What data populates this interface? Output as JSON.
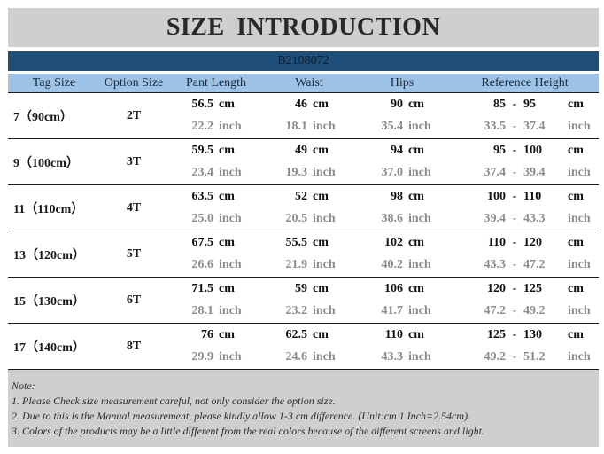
{
  "title": "SIZE  INTRODUCTION",
  "product_code": "B2108072",
  "columns": [
    "Tag Size",
    "Option Size",
    "Pant Length",
    "Waist",
    "Hips",
    "Reference Height"
  ],
  "units": {
    "cm": "cm",
    "inch": "inch",
    "dash": "-"
  },
  "rows": [
    {
      "tag": "7（90cm）",
      "option": "2T",
      "pant_cm": "56.5",
      "pant_in": "22.2",
      "waist_cm": "46",
      "waist_in": "18.1",
      "hips_cm": "90",
      "hips_in": "35.4",
      "ref_cm_min": "85",
      "ref_cm_max": "95",
      "ref_in_min": "33.5",
      "ref_in_max": "37.4"
    },
    {
      "tag": "9（100cm）",
      "option": "3T",
      "pant_cm": "59.5",
      "pant_in": "23.4",
      "waist_cm": "49",
      "waist_in": "19.3",
      "hips_cm": "94",
      "hips_in": "37.0",
      "ref_cm_min": "95",
      "ref_cm_max": "100",
      "ref_in_min": "37.4",
      "ref_in_max": "39.4"
    },
    {
      "tag": "11（110cm）",
      "option": "4T",
      "pant_cm": "63.5",
      "pant_in": "25.0",
      "waist_cm": "52",
      "waist_in": "20.5",
      "hips_cm": "98",
      "hips_in": "38.6",
      "ref_cm_min": "100",
      "ref_cm_max": "110",
      "ref_in_min": "39.4",
      "ref_in_max": "43.3"
    },
    {
      "tag": "13（120cm）",
      "option": "5T",
      "pant_cm": "67.5",
      "pant_in": "26.6",
      "waist_cm": "55.5",
      "waist_in": "21.9",
      "hips_cm": "102",
      "hips_in": "40.2",
      "ref_cm_min": "110",
      "ref_cm_max": "120",
      "ref_in_min": "43.3",
      "ref_in_max": "47.2"
    },
    {
      "tag": "15（130cm）",
      "option": "6T",
      "pant_cm": "71.5",
      "pant_in": "28.1",
      "waist_cm": "59",
      "waist_in": "23.2",
      "hips_cm": "106",
      "hips_in": "41.7",
      "ref_cm_min": "120",
      "ref_cm_max": "125",
      "ref_in_min": "47.2",
      "ref_in_max": "49.2"
    },
    {
      "tag": "17（140cm）",
      "option": "8T",
      "pant_cm": "76",
      "pant_in": "29.9",
      "waist_cm": "62.5",
      "waist_in": "24.6",
      "hips_cm": "110",
      "hips_in": "43.3",
      "ref_cm_min": "125",
      "ref_cm_max": "130",
      "ref_in_min": "49.2",
      "ref_in_max": "51.2"
    }
  ],
  "notes": {
    "heading": "Note:",
    "items": [
      "1. Please Check size measurement careful, not only consider the option size.",
      "2. Due to this is the Manual measurement, please kindly allow 1-3 cm difference.  (Unit:cm  1 Inch=2.54cm).",
      "3. Colors of the products may be a little different from the real colors because of the different screens and light."
    ]
  },
  "colors": {
    "title_band": "#d0cfd0",
    "code_band": "#1f4e79",
    "header_band": "#9dc3e6",
    "cm_text": "#111111",
    "inch_text": "#8c8c8c"
  }
}
